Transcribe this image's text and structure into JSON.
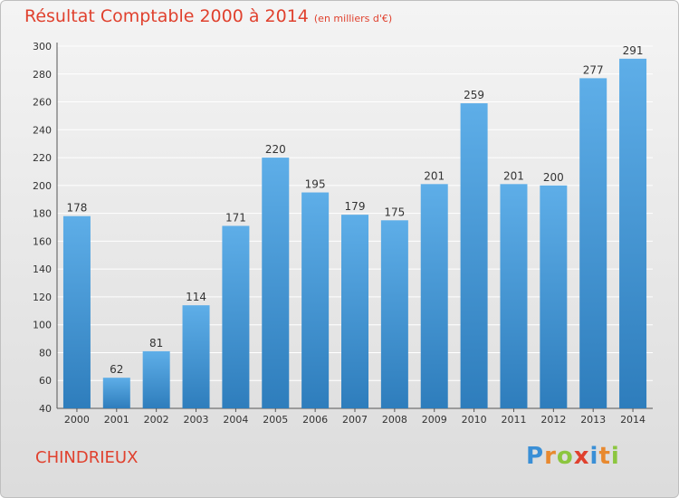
{
  "header": {
    "title": "Résultat Comptable 2000 à 2014",
    "subtitle": "(en milliers d'€)"
  },
  "footer": {
    "location": "CHINDRIEUX",
    "brand": "Proxiti"
  },
  "colors": {
    "title": "#e0412e",
    "bar_top": "#5eaee8",
    "bar_bottom": "#2e7dbc",
    "grid": "#ffffff"
  },
  "chart_data": {
    "type": "bar",
    "title": "Résultat Comptable 2000 à 2014",
    "unit": "en milliers d'€",
    "categories": [
      "2000",
      "2001",
      "2002",
      "2003",
      "2004",
      "2005",
      "2006",
      "2007",
      "2008",
      "2009",
      "2010",
      "2011",
      "2012",
      "2013",
      "2014"
    ],
    "values": [
      178,
      62,
      81,
      114,
      171,
      220,
      195,
      179,
      175,
      201,
      259,
      201,
      200,
      277,
      291
    ],
    "ylim": [
      40,
      300
    ],
    "yticks": [
      40,
      60,
      80,
      100,
      120,
      140,
      160,
      180,
      200,
      220,
      240,
      260,
      280,
      300
    ],
    "grid": true,
    "legend": "none"
  }
}
